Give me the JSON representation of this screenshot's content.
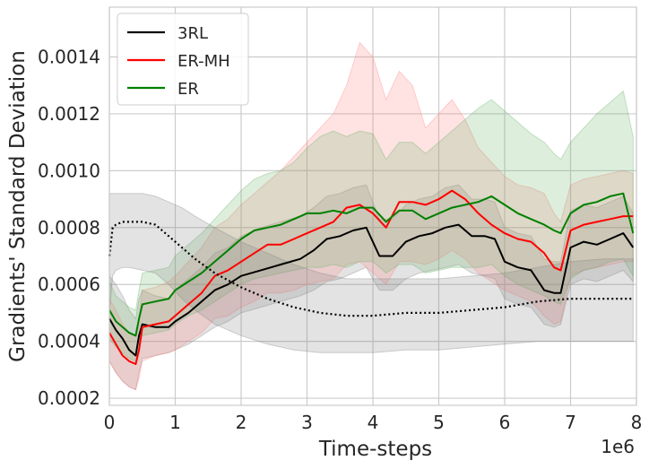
{
  "chart_data": {
    "type": "line",
    "xlabel": "Time-steps",
    "ylabel": "Gradients' Standard Deviation",
    "x_offset_label": "1e6",
    "xlim": [
      0,
      8
    ],
    "ylim": [
      0.000175,
      0.001575
    ],
    "x_ticks": [
      "0",
      "1",
      "2",
      "3",
      "4",
      "5",
      "6",
      "7",
      "8"
    ],
    "y_ticks": [
      "0.0002",
      "0.0004",
      "0.0006",
      "0.0008",
      "0.0010",
      "0.0012",
      "0.0014"
    ],
    "grid": true,
    "legend_position": "top-left",
    "series": [
      {
        "name": "3RL",
        "color": "#000000",
        "band_color": "#808080",
        "x": [
          0,
          0.1,
          0.2,
          0.3,
          0.4,
          0.45,
          0.5,
          0.7,
          0.9,
          1.0,
          1.2,
          1.4,
          1.6,
          1.8,
          2.0,
          2.3,
          2.6,
          2.9,
          3.1,
          3.3,
          3.5,
          3.7,
          3.9,
          4.1,
          4.3,
          4.5,
          4.7,
          4.9,
          5.1,
          5.3,
          5.5,
          5.7,
          5.85,
          6.0,
          6.2,
          6.4,
          6.6,
          6.75,
          6.85,
          7.0,
          7.2,
          7.4,
          7.6,
          7.8,
          7.95
        ],
        "y": [
          0.00048,
          0.00044,
          0.00041,
          0.00037,
          0.00035,
          0.00042,
          0.00046,
          0.00045,
          0.00045,
          0.00047,
          0.0005,
          0.00054,
          0.00058,
          0.0006,
          0.00063,
          0.00065,
          0.00067,
          0.00069,
          0.00072,
          0.00076,
          0.00077,
          0.00079,
          0.0008,
          0.0007,
          0.0007,
          0.00075,
          0.00077,
          0.00078,
          0.0008,
          0.00081,
          0.00077,
          0.00077,
          0.00076,
          0.00068,
          0.00066,
          0.00065,
          0.00058,
          0.00057,
          0.00057,
          0.00073,
          0.00075,
          0.00074,
          0.00076,
          0.00078,
          0.00073
        ],
        "lower": [
          0.00033,
          0.00029,
          0.00026,
          0.00024,
          0.00023,
          0.00029,
          0.00034,
          0.00035,
          0.00036,
          0.00037,
          0.00039,
          0.00042,
          0.00045,
          0.00047,
          0.0005,
          0.00052,
          0.00054,
          0.00056,
          0.00058,
          0.00061,
          0.00062,
          0.00064,
          0.00066,
          0.00058,
          0.00058,
          0.00062,
          0.00064,
          0.00065,
          0.00066,
          0.00067,
          0.00064,
          0.00063,
          0.00062,
          0.00055,
          0.00053,
          0.00052,
          0.00046,
          0.00045,
          0.00046,
          0.0006,
          0.00062,
          0.00061,
          0.00063,
          0.00065,
          0.00061
        ],
        "upper": [
          0.00063,
          0.0006,
          0.00056,
          0.00051,
          0.00048,
          0.00055,
          0.00058,
          0.00056,
          0.00055,
          0.00058,
          0.00062,
          0.00066,
          0.00071,
          0.00073,
          0.00077,
          0.0008,
          0.00082,
          0.00084,
          0.00087,
          0.00091,
          0.00092,
          0.00094,
          0.00095,
          0.00083,
          0.00083,
          0.00088,
          0.0009,
          0.00091,
          0.00094,
          0.00095,
          0.0009,
          0.0009,
          0.00089,
          0.0008,
          0.00078,
          0.00077,
          0.00069,
          0.00068,
          0.00068,
          0.00086,
          0.00088,
          0.00087,
          0.00089,
          0.00091,
          0.00085
        ]
      },
      {
        "name": "ER-MH",
        "color": "#ff0000",
        "band_color": "#ff8080",
        "x": [
          0,
          0.1,
          0.2,
          0.3,
          0.4,
          0.45,
          0.5,
          0.7,
          0.9,
          1.0,
          1.2,
          1.4,
          1.6,
          1.8,
          2.0,
          2.2,
          2.4,
          2.6,
          2.8,
          3.0,
          3.2,
          3.4,
          3.6,
          3.8,
          4.0,
          4.2,
          4.4,
          4.6,
          4.8,
          5.0,
          5.2,
          5.4,
          5.6,
          5.8,
          6.0,
          6.2,
          6.4,
          6.6,
          6.75,
          6.85,
          7.0,
          7.2,
          7.4,
          7.6,
          7.8,
          7.95
        ],
        "y": [
          0.00043,
          0.00039,
          0.00035,
          0.00033,
          0.00032,
          0.00037,
          0.00045,
          0.00046,
          0.00047,
          0.00049,
          0.00053,
          0.00057,
          0.00063,
          0.00065,
          0.00068,
          0.00071,
          0.00074,
          0.00074,
          0.00076,
          0.00078,
          0.0008,
          0.00082,
          0.00087,
          0.00088,
          0.00085,
          0.0008,
          0.00089,
          0.00089,
          0.00088,
          0.0009,
          0.00093,
          0.0009,
          0.00085,
          0.00081,
          0.00078,
          0.00076,
          0.00075,
          0.00071,
          0.00066,
          0.00065,
          0.00079,
          0.00081,
          0.00082,
          0.00083,
          0.00084,
          0.00084
        ],
        "lower": [
          0.00033,
          0.00029,
          0.00026,
          0.00024,
          0.00023,
          0.00027,
          0.00033,
          0.00035,
          0.00036,
          0.00037,
          0.0004,
          0.00043,
          0.00048,
          0.00049,
          0.00052,
          0.00054,
          0.00057,
          0.00057,
          0.00058,
          0.0006,
          0.00061,
          0.00062,
          0.00067,
          0.00068,
          0.00064,
          0.0006,
          0.00068,
          0.00068,
          0.00067,
          0.00069,
          0.00072,
          0.00069,
          0.00064,
          0.00061,
          0.00058,
          0.00056,
          0.00054,
          0.00049,
          0.00046,
          0.00047,
          0.00063,
          0.00065,
          0.00066,
          0.00067,
          0.00068,
          0.00068
        ],
        "upper": [
          0.00055,
          0.00051,
          0.00046,
          0.00043,
          0.00042,
          0.00048,
          0.00058,
          0.00059,
          0.00061,
          0.00063,
          0.00068,
          0.00073,
          0.0008,
          0.00083,
          0.00088,
          0.00092,
          0.00096,
          0.001,
          0.00105,
          0.0011,
          0.00115,
          0.0012,
          0.0013,
          0.00145,
          0.0014,
          0.00125,
          0.00135,
          0.0013,
          0.00115,
          0.0012,
          0.00125,
          0.00118,
          0.00108,
          0.00103,
          0.00098,
          0.00095,
          0.00094,
          0.00092,
          0.00085,
          0.00082,
          0.00095,
          0.00097,
          0.00098,
          0.00099,
          0.001,
          0.00099
        ]
      },
      {
        "name": "ER",
        "color": "#008000",
        "band_color": "#66b266",
        "x": [
          0,
          0.1,
          0.2,
          0.3,
          0.4,
          0.45,
          0.5,
          0.7,
          0.9,
          1.0,
          1.2,
          1.4,
          1.6,
          1.8,
          2.0,
          2.2,
          2.4,
          2.6,
          2.8,
          3.0,
          3.2,
          3.4,
          3.6,
          3.8,
          4.0,
          4.2,
          4.4,
          4.6,
          4.8,
          5.0,
          5.2,
          5.4,
          5.6,
          5.8,
          6.0,
          6.2,
          6.4,
          6.6,
          6.75,
          6.85,
          7.0,
          7.2,
          7.4,
          7.6,
          7.8,
          7.95
        ],
        "y": [
          0.00051,
          0.00047,
          0.00045,
          0.00043,
          0.00042,
          0.00048,
          0.00053,
          0.00054,
          0.00055,
          0.00058,
          0.00061,
          0.00064,
          0.00068,
          0.00072,
          0.00076,
          0.00079,
          0.0008,
          0.00081,
          0.00083,
          0.00085,
          0.00085,
          0.00086,
          0.00085,
          0.00087,
          0.00087,
          0.00082,
          0.00086,
          0.00086,
          0.00083,
          0.00085,
          0.00087,
          0.00088,
          0.00089,
          0.00091,
          0.00088,
          0.00085,
          0.00083,
          0.00081,
          0.00079,
          0.00078,
          0.00085,
          0.00088,
          0.00089,
          0.00091,
          0.00092,
          0.00078
        ],
        "lower": [
          0.00041,
          0.00038,
          0.00036,
          0.00034,
          0.00033,
          0.00038,
          0.00042,
          0.00043,
          0.00044,
          0.00046,
          0.00049,
          0.00051,
          0.00054,
          0.00057,
          0.0006,
          0.00062,
          0.00063,
          0.00064,
          0.00065,
          0.00066,
          0.00066,
          0.00067,
          0.00066,
          0.00068,
          0.00068,
          0.00064,
          0.00067,
          0.00067,
          0.00064,
          0.00065,
          0.00066,
          0.00066,
          0.00066,
          0.00067,
          0.00063,
          0.0006,
          0.00058,
          0.00056,
          0.00054,
          0.00053,
          0.00062,
          0.00065,
          0.00066,
          0.00068,
          0.00069,
          0.00063
        ],
        "upper": [
          0.00061,
          0.00056,
          0.00054,
          0.00052,
          0.00051,
          0.00058,
          0.00064,
          0.00065,
          0.00066,
          0.0007,
          0.00074,
          0.00078,
          0.00083,
          0.00088,
          0.00093,
          0.00097,
          0.00099,
          0.001,
          0.00103,
          0.00108,
          0.00112,
          0.00114,
          0.00112,
          0.00114,
          0.00113,
          0.00104,
          0.0011,
          0.0011,
          0.00106,
          0.0011,
          0.00114,
          0.00118,
          0.00122,
          0.00125,
          0.00121,
          0.00117,
          0.00113,
          0.0011,
          0.00106,
          0.00104,
          0.0011,
          0.00115,
          0.0012,
          0.00124,
          0.00128,
          0.00112
        ]
      },
      {
        "name": "",
        "style": "dotted",
        "color": "#000000",
        "band_color": "#808080",
        "x": [
          0,
          0.05,
          0.1,
          0.2,
          0.3,
          0.5,
          0.7,
          0.9,
          1.1,
          1.3,
          1.6,
          2.0,
          2.4,
          2.8,
          3.2,
          3.6,
          4.0,
          4.5,
          5.0,
          5.5,
          6.0,
          6.5,
          7.0,
          7.5,
          7.95
        ],
        "y": [
          0.0007,
          0.0008,
          0.00081,
          0.00082,
          0.00082,
          0.00082,
          0.00081,
          0.00077,
          0.00073,
          0.00069,
          0.00064,
          0.00059,
          0.00055,
          0.00052,
          0.0005,
          0.00049,
          0.00049,
          0.0005,
          0.0005,
          0.00051,
          0.00052,
          0.00054,
          0.00055,
          0.00055,
          0.00055
        ],
        "lower": [
          0.0005,
          0.00063,
          0.00065,
          0.00066,
          0.00066,
          0.00065,
          0.00064,
          0.0006,
          0.00055,
          0.00051,
          0.00046,
          0.00042,
          0.00039,
          0.00037,
          0.00036,
          0.00036,
          0.00036,
          0.00037,
          0.00037,
          0.00038,
          0.00039,
          0.0004,
          0.0004,
          0.0004,
          0.0004
        ],
        "upper": [
          0.00092,
          0.00092,
          0.00092,
          0.00092,
          0.00092,
          0.00092,
          0.00091,
          0.00089,
          0.00087,
          0.00084,
          0.0008,
          0.00075,
          0.00071,
          0.00067,
          0.00064,
          0.00062,
          0.00062,
          0.00062,
          0.00062,
          0.00063,
          0.00064,
          0.00066,
          0.00068,
          0.00069,
          0.00069
        ]
      }
    ]
  }
}
